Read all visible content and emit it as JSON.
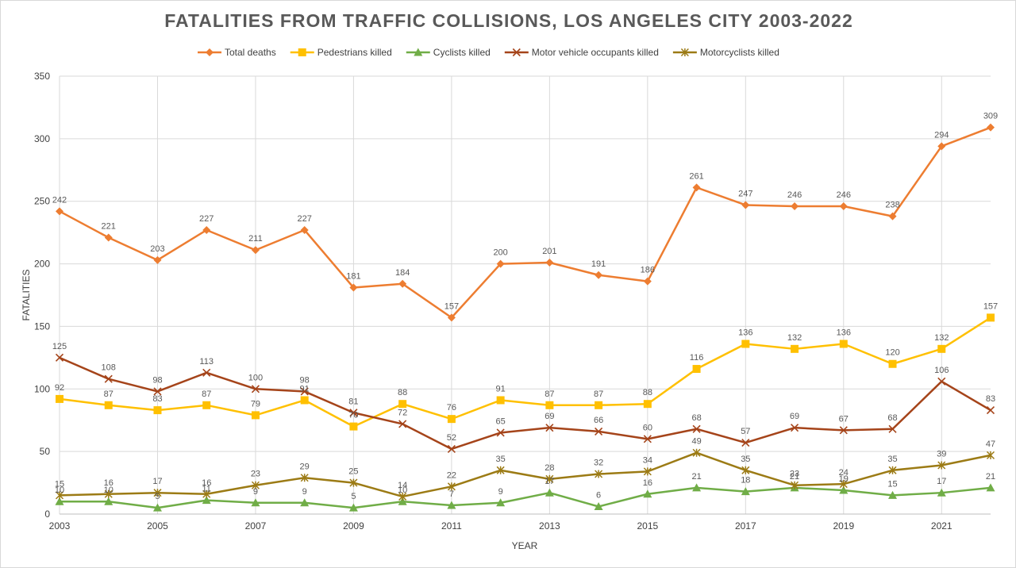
{
  "chart_data": {
    "type": "line",
    "title": "FATALITIES FROM TRAFFIC COLLISIONS, LOS ANGELES CITY 2003-2022",
    "xlabel": "YEAR",
    "ylabel": "FATALITIES",
    "ylim": [
      0,
      350
    ],
    "y_ticks": [
      0,
      50,
      100,
      150,
      200,
      250,
      300,
      350
    ],
    "x": [
      2003,
      2004,
      2005,
      2006,
      2007,
      2008,
      2009,
      2010,
      2011,
      2012,
      2013,
      2014,
      2015,
      2016,
      2017,
      2018,
      2019,
      2020,
      2021,
      2022
    ],
    "x_tick_labels": [
      "2003",
      "2005",
      "2007",
      "2009",
      "2011",
      "2013",
      "2015",
      "2017",
      "2019",
      "2021"
    ],
    "grid": true,
    "legend_position": "top",
    "series": [
      {
        "name": "Total deaths",
        "color": "#ED7D31",
        "marker": "diamond",
        "values": [
          242,
          221,
          203,
          227,
          211,
          227,
          181,
          184,
          157,
          200,
          201,
          191,
          186,
          261,
          247,
          246,
          246,
          238,
          294,
          309
        ]
      },
      {
        "name": "Pedestrians killed",
        "color": "#FFC000",
        "marker": "square",
        "values": [
          92,
          87,
          83,
          87,
          79,
          91,
          70,
          88,
          76,
          91,
          87,
          87,
          88,
          116,
          136,
          132,
          136,
          120,
          132,
          157
        ]
      },
      {
        "name": "Cyclists killed",
        "color": "#70AD47",
        "marker": "triangle",
        "values": [
          10,
          10,
          5,
          11,
          9,
          9,
          5,
          10,
          7,
          9,
          17,
          6,
          16,
          21,
          18,
          21,
          19,
          15,
          17,
          21
        ]
      },
      {
        "name": "Motor vehicle occupants killed",
        "color": "#A5441A",
        "marker": "x",
        "values": [
          125,
          108,
          98,
          113,
          100,
          98,
          81,
          72,
          52,
          65,
          69,
          66,
          60,
          68,
          57,
          69,
          67,
          68,
          106,
          83
        ]
      },
      {
        "name": "Motorcyclists killed",
        "color": "#9C7B15",
        "marker": "star",
        "values": [
          15,
          16,
          17,
          16,
          23,
          29,
          25,
          14,
          22,
          35,
          28,
          32,
          34,
          49,
          35,
          23,
          24,
          35,
          39,
          47
        ]
      }
    ]
  }
}
